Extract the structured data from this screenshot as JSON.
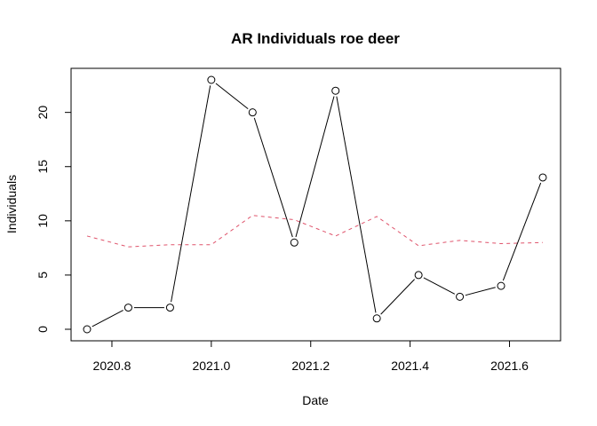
{
  "chart_data": {
    "type": "line",
    "title": "AR Individuals roe deer",
    "xlabel": "Date",
    "ylabel": "Individuals",
    "xlim": [
      2020.75,
      2021.667
    ],
    "ylim": [
      0,
      23
    ],
    "x_ticks": [
      "2020.8",
      "2021.0",
      "2021.2",
      "2021.4",
      "2021.6"
    ],
    "x_tick_values": [
      2020.8,
      2021.0,
      2021.2,
      2021.4,
      2021.6
    ],
    "y_ticks": [
      "0",
      "5",
      "10",
      "15",
      "20"
    ],
    "y_tick_values": [
      0,
      5,
      10,
      15,
      20
    ],
    "grid": false,
    "legend": "none",
    "series": [
      {
        "style": "solid line with open circle markers",
        "color": "#000000",
        "x": [
          2020.75,
          2020.833,
          2020.917,
          2021.0,
          2021.083,
          2021.167,
          2021.25,
          2021.333,
          2021.417,
          2021.5,
          2021.583,
          2021.667
        ],
        "values": [
          0,
          2,
          2,
          23,
          20,
          8,
          22,
          1,
          5,
          3,
          4,
          14
        ]
      },
      {
        "style": "dashed line",
        "color": "#DF536B",
        "x": [
          2020.75,
          2020.833,
          2020.917,
          2021.0,
          2021.083,
          2021.167,
          2021.25,
          2021.333,
          2021.417,
          2021.5,
          2021.583,
          2021.667
        ],
        "values": [
          8.6,
          7.6,
          7.8,
          7.8,
          10.5,
          10.1,
          8.6,
          10.4,
          7.7,
          8.2,
          7.9,
          8.0
        ]
      }
    ]
  }
}
